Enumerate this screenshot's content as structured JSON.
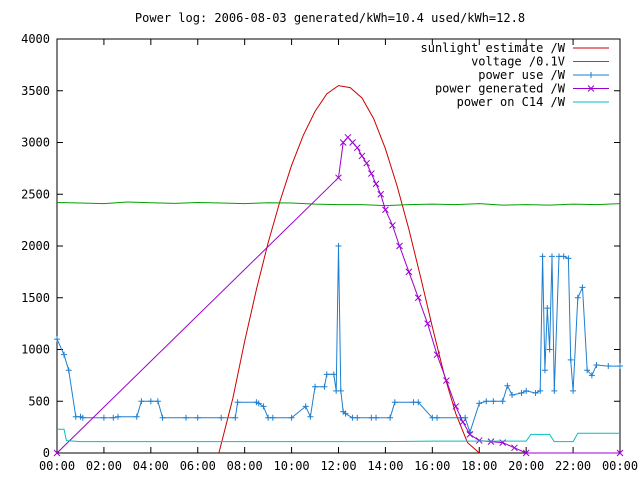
{
  "chart_data": {
    "type": "line",
    "title": "Power log: 2006-08-03 generated/kWh=10.4 used/kWh=12.8",
    "xlabel": "",
    "ylabel": "",
    "xlim": [
      0,
      24
    ],
    "ylim": [
      0,
      4000
    ],
    "grid": false,
    "legend_position": "top-right",
    "x_ticks": [
      {
        "value": 0,
        "label": "00:00"
      },
      {
        "value": 2,
        "label": "02:00"
      },
      {
        "value": 4,
        "label": "04:00"
      },
      {
        "value": 6,
        "label": "06:00"
      },
      {
        "value": 8,
        "label": "08:00"
      },
      {
        "value": 10,
        "label": "10:00"
      },
      {
        "value": 12,
        "label": "12:00"
      },
      {
        "value": 14,
        "label": "14:00"
      },
      {
        "value": 16,
        "label": "16:00"
      },
      {
        "value": 18,
        "label": "18:00"
      },
      {
        "value": 20,
        "label": "20:00"
      },
      {
        "value": 22,
        "label": "22:00"
      },
      {
        "value": 24,
        "label": "00:00"
      }
    ],
    "y_ticks": [
      {
        "value": 0,
        "label": "0"
      },
      {
        "value": 500,
        "label": "500"
      },
      {
        "value": 1000,
        "label": "1000"
      },
      {
        "value": 1500,
        "label": "1500"
      },
      {
        "value": 2000,
        "label": "2000"
      },
      {
        "value": 2500,
        "label": "2500"
      },
      {
        "value": 3000,
        "label": "3000"
      },
      {
        "value": 3500,
        "label": "3500"
      },
      {
        "value": 4000,
        "label": "4000"
      }
    ],
    "series": [
      {
        "name": "sunlight estimate /W",
        "color": "#cc0000",
        "style": "line",
        "x": [
          6.9,
          7.5,
          8.0,
          8.5,
          9.0,
          9.5,
          10.0,
          10.5,
          11.0,
          11.5,
          12.0,
          12.5,
          13.0,
          13.5,
          14.0,
          14.5,
          15.0,
          15.5,
          16.0,
          16.5,
          17.0,
          17.5,
          18.0
        ],
        "y": [
          0,
          530,
          1080,
          1580,
          2030,
          2430,
          2780,
          3070,
          3300,
          3470,
          3550,
          3530,
          3430,
          3230,
          2940,
          2580,
          2160,
          1700,
          1220,
          760,
          380,
          100,
          0
        ]
      },
      {
        "name": "voltage /0.1V",
        "color": "#00a000",
        "style": "line",
        "x": [
          0,
          1,
          2,
          3,
          4,
          5,
          6,
          7,
          8,
          9,
          10,
          11,
          12,
          13,
          14,
          15,
          16,
          17,
          18,
          19,
          20,
          21,
          22,
          23,
          24
        ],
        "y": [
          2420,
          2415,
          2410,
          2425,
          2418,
          2412,
          2420,
          2415,
          2410,
          2418,
          2415,
          2405,
          2400,
          2400,
          2390,
          2400,
          2405,
          2400,
          2410,
          2395,
          2400,
          2395,
          2405,
          2400,
          2410
        ]
      },
      {
        "name": "power use /W",
        "color": "#1e7fd0",
        "style": "line-points",
        "x": [
          0.0,
          0.3,
          0.5,
          0.8,
          1.0,
          1.1,
          2.0,
          2.4,
          2.6,
          3.4,
          3.6,
          4.0,
          4.3,
          4.5,
          5.5,
          6.0,
          7.0,
          7.6,
          7.7,
          8.5,
          8.6,
          8.8,
          9.0,
          9.2,
          10.0,
          10.6,
          10.8,
          11.0,
          11.4,
          11.5,
          11.8,
          11.9,
          12.0,
          12.1,
          12.2,
          12.3,
          12.6,
          12.8,
          13.4,
          13.6,
          14.2,
          14.4,
          15.2,
          15.4,
          16.0,
          16.2,
          17.2,
          17.4,
          17.6,
          18.0,
          18.3,
          18.6,
          19.0,
          19.2,
          19.4,
          19.8,
          20.0,
          20.4,
          20.6,
          20.7,
          20.8,
          20.9,
          21.0,
          21.1,
          21.2,
          21.4,
          21.6,
          21.8,
          21.9,
          22.0,
          22.2,
          22.4,
          22.6,
          22.8,
          23.0,
          23.5,
          24.0
        ],
        "y": [
          1100,
          950,
          800,
          350,
          350,
          340,
          340,
          340,
          350,
          350,
          500,
          500,
          500,
          340,
          340,
          340,
          340,
          340,
          490,
          490,
          480,
          450,
          340,
          340,
          340,
          450,
          350,
          640,
          640,
          760,
          760,
          600,
          2000,
          600,
          400,
          380,
          340,
          340,
          340,
          340,
          340,
          490,
          490,
          490,
          340,
          340,
          340,
          340,
          200,
          480,
          500,
          500,
          500,
          650,
          560,
          580,
          600,
          580,
          600,
          1900,
          800,
          1400,
          1000,
          1900,
          600,
          1900,
          1900,
          1880,
          900,
          600,
          1500,
          1600,
          800,
          750,
          850,
          840,
          840
        ]
      },
      {
        "name": "power generated /W",
        "color": "#9a00d0",
        "style": "line-points",
        "x": [
          0,
          12.0,
          12.2,
          12.4,
          12.6,
          12.8,
          13.0,
          13.2,
          13.4,
          13.6,
          13.8,
          14.0,
          14.3,
          14.6,
          15.0,
          15.4,
          15.8,
          16.2,
          16.6,
          17.0,
          17.3,
          17.6,
          18.0,
          18.5,
          19.0,
          19.5,
          20.0,
          24.0
        ],
        "y": [
          0,
          2660,
          3000,
          3050,
          3000,
          2950,
          2870,
          2800,
          2700,
          2600,
          2500,
          2350,
          2200,
          2000,
          1750,
          1500,
          1250,
          950,
          700,
          450,
          300,
          180,
          120,
          110,
          100,
          50,
          0,
          0
        ]
      },
      {
        "name": "power on C14 /W",
        "color": "#00c0c0",
        "style": "line",
        "x": [
          0,
          0.3,
          0.4,
          1.0,
          2.0,
          4.0,
          6.0,
          8.0,
          10.0,
          12.0,
          14.0,
          16.0,
          18.0,
          19.0,
          20.0,
          20.2,
          20.4,
          21.0,
          21.2,
          22.0,
          22.2,
          23.0,
          24.0
        ],
        "y": [
          230,
          230,
          120,
          110,
          110,
          110,
          110,
          110,
          110,
          110,
          110,
          115,
          115,
          115,
          115,
          180,
          180,
          180,
          110,
          110,
          190,
          190,
          190
        ]
      }
    ]
  }
}
